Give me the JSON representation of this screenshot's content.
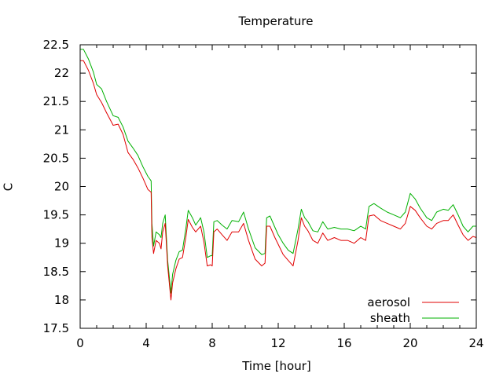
{
  "chart_data": {
    "type": "line",
    "title": "Temperature",
    "xlabel": "Time [hour]",
    "ylabel": "C",
    "xlim": [
      0,
      24
    ],
    "ylim": [
      17.5,
      22.5
    ],
    "x_ticks": [
      0,
      4,
      8,
      12,
      16,
      20,
      24
    ],
    "x_tick_labels": [
      "0",
      "4",
      "8",
      "12",
      "16",
      "20",
      "24"
    ],
    "y_ticks": [
      17.5,
      18,
      18.5,
      19,
      19.5,
      20,
      20.5,
      21,
      21.5,
      22,
      22.5
    ],
    "y_tick_labels": [
      "17.5",
      "18",
      "18.5",
      "19",
      "19.5",
      "20",
      "20.5",
      "21",
      "21.5",
      "22",
      "22.5"
    ],
    "grid": false,
    "legend_position": "bottom-right",
    "series": [
      {
        "name": "aerosol",
        "color": "#e00000",
        "x": [
          0,
          0.2,
          0.5,
          0.8,
          1.0,
          1.3,
          1.6,
          2.0,
          2.3,
          2.6,
          2.9,
          3.2,
          3.5,
          3.8,
          4.1,
          4.3,
          4.35,
          4.45,
          4.6,
          4.8,
          4.9,
          5.0,
          5.15,
          5.3,
          5.5,
          5.6,
          5.8,
          6.0,
          6.2,
          6.4,
          6.55,
          6.8,
          7.0,
          7.3,
          7.5,
          7.7,
          7.9,
          8.0,
          8.1,
          8.3,
          8.6,
          8.9,
          9.2,
          9.6,
          9.9,
          10.2,
          10.6,
          11.0,
          11.2,
          11.3,
          11.5,
          11.8,
          12.0,
          12.3,
          12.6,
          12.9,
          13.2,
          13.4,
          13.6,
          13.8,
          14.1,
          14.4,
          14.7,
          15.0,
          15.4,
          15.8,
          16.2,
          16.6,
          17.0,
          17.3,
          17.5,
          17.8,
          18.2,
          18.6,
          19.0,
          19.4,
          19.7,
          20.0,
          20.3,
          20.6,
          21.0,
          21.3,
          21.6,
          22.0,
          22.3,
          22.6,
          22.9,
          23.2,
          23.5,
          23.8,
          24.0
        ],
        "values": [
          22.22,
          22.22,
          22.05,
          21.82,
          21.62,
          21.48,
          21.3,
          21.08,
          21.1,
          20.92,
          20.6,
          20.48,
          20.33,
          20.15,
          19.95,
          19.9,
          19.1,
          18.82,
          19.05,
          19.0,
          18.9,
          19.2,
          19.35,
          18.6,
          18.0,
          18.3,
          18.55,
          18.72,
          18.75,
          19.1,
          19.42,
          19.28,
          19.2,
          19.3,
          19.02,
          18.6,
          18.62,
          18.6,
          19.2,
          19.25,
          19.15,
          19.05,
          19.2,
          19.2,
          19.35,
          19.05,
          18.72,
          18.6,
          18.65,
          19.3,
          19.3,
          19.1,
          18.98,
          18.8,
          18.7,
          18.6,
          19.05,
          19.45,
          19.3,
          19.22,
          19.05,
          19.0,
          19.18,
          19.05,
          19.1,
          19.05,
          19.05,
          19.0,
          19.1,
          19.05,
          19.48,
          19.5,
          19.4,
          19.35,
          19.3,
          19.25,
          19.35,
          19.65,
          19.58,
          19.45,
          19.3,
          19.25,
          19.35,
          19.4,
          19.4,
          19.5,
          19.32,
          19.15,
          19.05,
          19.12,
          19.1
        ]
      },
      {
        "name": "sheath",
        "color": "#00b000",
        "x": [
          0,
          0.2,
          0.5,
          0.8,
          1.0,
          1.3,
          1.6,
          2.0,
          2.3,
          2.6,
          2.9,
          3.2,
          3.5,
          3.8,
          4.1,
          4.3,
          4.35,
          4.45,
          4.6,
          4.8,
          4.9,
          5.0,
          5.15,
          5.3,
          5.5,
          5.6,
          5.8,
          6.0,
          6.2,
          6.4,
          6.55,
          6.8,
          7.0,
          7.3,
          7.5,
          7.7,
          7.9,
          8.0,
          8.1,
          8.3,
          8.6,
          8.9,
          9.2,
          9.6,
          9.9,
          10.2,
          10.6,
          11.0,
          11.2,
          11.3,
          11.5,
          11.8,
          12.0,
          12.3,
          12.6,
          12.9,
          13.2,
          13.4,
          13.6,
          13.8,
          14.1,
          14.4,
          14.7,
          15.0,
          15.4,
          15.8,
          16.2,
          16.6,
          17.0,
          17.3,
          17.5,
          17.8,
          18.2,
          18.6,
          19.0,
          19.4,
          19.7,
          20.0,
          20.3,
          20.6,
          21.0,
          21.3,
          21.6,
          22.0,
          22.3,
          22.6,
          22.9,
          23.2,
          23.5,
          23.8,
          24.0
        ],
        "values": [
          22.42,
          22.42,
          22.25,
          22.02,
          21.8,
          21.72,
          21.5,
          21.25,
          21.22,
          21.05,
          20.8,
          20.68,
          20.55,
          20.35,
          20.18,
          20.1,
          19.35,
          18.95,
          19.2,
          19.15,
          19.1,
          19.35,
          19.5,
          18.7,
          18.12,
          18.45,
          18.7,
          18.85,
          18.88,
          19.25,
          19.58,
          19.45,
          19.32,
          19.45,
          19.2,
          18.75,
          18.78,
          18.78,
          19.38,
          19.4,
          19.32,
          19.25,
          19.4,
          19.38,
          19.55,
          19.25,
          18.92,
          18.8,
          18.82,
          19.45,
          19.48,
          19.28,
          19.15,
          19.0,
          18.88,
          18.82,
          19.25,
          19.6,
          19.45,
          19.38,
          19.22,
          19.2,
          19.38,
          19.25,
          19.28,
          19.25,
          19.25,
          19.22,
          19.3,
          19.25,
          19.65,
          19.7,
          19.62,
          19.55,
          19.5,
          19.45,
          19.55,
          19.88,
          19.78,
          19.62,
          19.45,
          19.4,
          19.55,
          19.6,
          19.58,
          19.68,
          19.5,
          19.3,
          19.2,
          19.3,
          19.3
        ]
      }
    ]
  }
}
